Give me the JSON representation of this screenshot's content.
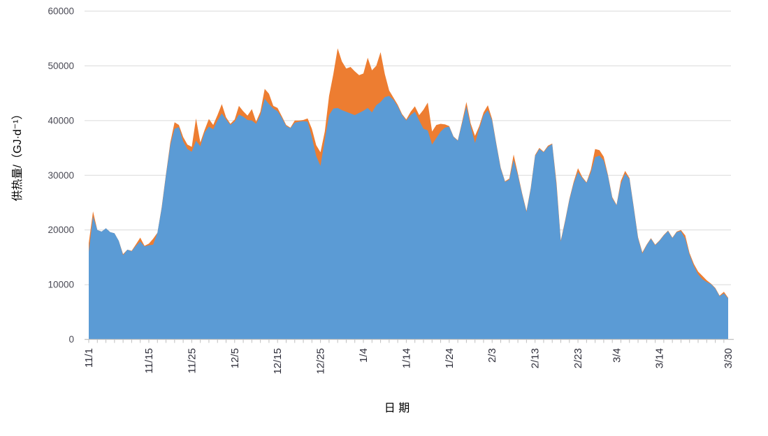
{
  "chart_data": {
    "type": "area",
    "title": "",
    "xlabel": "日  期",
    "ylabel": "供热量/（GJ·d⁻¹）",
    "ylim": [
      0,
      60000
    ],
    "grid": "horizontal",
    "legend": "none",
    "colors": {
      "blue_series": "#5B9BD5",
      "orange_series": "#ED7D31",
      "gridline": "#D9D9D9",
      "axis": "#BFBFBF"
    },
    "y_ticks": [
      {
        "value": 0,
        "label": "0"
      },
      {
        "value": 10000,
        "label": "10000"
      },
      {
        "value": 20000,
        "label": "20000"
      },
      {
        "value": 30000,
        "label": "30000"
      },
      {
        "value": 40000,
        "label": "40000"
      },
      {
        "value": 50000,
        "label": "50000"
      },
      {
        "value": 60000,
        "label": "60000"
      }
    ],
    "x_ticks": [
      {
        "label": "11/1",
        "day": 0
      },
      {
        "label": "11/15",
        "day": 14
      },
      {
        "label": "11/25",
        "day": 24
      },
      {
        "label": "12/5",
        "day": 34
      },
      {
        "label": "12/15",
        "day": 44
      },
      {
        "label": "12/25",
        "day": 54
      },
      {
        "label": "1/4",
        "day": 64
      },
      {
        "label": "1/14",
        "day": 74
      },
      {
        "label": "1/24",
        "day": 84
      },
      {
        "label": "2/3",
        "day": 94
      },
      {
        "label": "2/13",
        "day": 104
      },
      {
        "label": "2/23",
        "day": 114
      },
      {
        "label": "3/4",
        "day": 123
      },
      {
        "label": "3/14",
        "day": 133
      },
      {
        "label": "3/30",
        "day": 149
      }
    ],
    "minor_tick_every_days": 2,
    "x_range_days": 150,
    "series": [
      {
        "name": "series-orange",
        "color": "#ED7D31",
        "values": [
          17600,
          23400,
          20000,
          19700,
          20300,
          19600,
          19400,
          18000,
          15600,
          16400,
          16200,
          17400,
          18600,
          17100,
          17500,
          18400,
          19500,
          24200,
          30200,
          36000,
          39700,
          39200,
          37000,
          35600,
          35200,
          40400,
          36000,
          38300,
          40300,
          39200,
          41000,
          43000,
          40600,
          39400,
          40200,
          42700,
          41700,
          40900,
          42100,
          39800,
          41600,
          45800,
          44900,
          42700,
          42300,
          40800,
          39200,
          38700,
          40000,
          40000,
          40100,
          40400,
          38500,
          35500,
          34200,
          38000,
          44500,
          48500,
          53200,
          50800,
          49500,
          49800,
          49000,
          48300,
          48600,
          51500,
          49200,
          50000,
          52500,
          48500,
          45500,
          44200,
          42900,
          41200,
          40200,
          41600,
          42600,
          41000,
          42000,
          43300,
          38000,
          39200,
          39400,
          39300,
          39000,
          37100,
          36400,
          39800,
          43400,
          39500,
          37200,
          39000,
          41500,
          42800,
          40300,
          35700,
          31400,
          28900,
          29400,
          33800,
          30300,
          26700,
          23500,
          27700,
          33700,
          35000,
          34300,
          35400,
          35800,
          28600,
          18100,
          21700,
          25700,
          28800,
          31300,
          29700,
          28700,
          31000,
          34800,
          34600,
          33400,
          30000,
          26000,
          24600,
          29000,
          30800,
          29500,
          24200,
          18700,
          15900,
          17300,
          18500,
          17300,
          18100,
          19100,
          19900,
          18600,
          19700,
          20000,
          19000,
          15800,
          13800,
          12400,
          11600,
          10800,
          10200,
          9400,
          8000,
          8700,
          7600
        ]
      },
      {
        "name": "series-blue",
        "color": "#5B9BD5",
        "values": [
          16000,
          22500,
          20000,
          19700,
          20300,
          19600,
          19400,
          18000,
          15400,
          16400,
          16100,
          17100,
          17900,
          17000,
          17200,
          17300,
          19500,
          24000,
          30000,
          35500,
          38500,
          38800,
          36200,
          34800,
          34300,
          36300,
          35300,
          37800,
          38900,
          38400,
          40000,
          41300,
          40200,
          39200,
          39800,
          41100,
          40700,
          40100,
          40000,
          39400,
          41000,
          44000,
          43000,
          42200,
          41700,
          40500,
          39000,
          38600,
          39600,
          39800,
          39900,
          39800,
          37000,
          33500,
          31700,
          36500,
          41000,
          42200,
          42300,
          41900,
          41600,
          41300,
          41000,
          41400,
          41800,
          42300,
          41500,
          42800,
          43400,
          44300,
          44500,
          43800,
          42600,
          41000,
          40000,
          41000,
          41600,
          40000,
          38500,
          38200,
          35600,
          36800,
          38000,
          38700,
          38900,
          37000,
          36300,
          39500,
          42600,
          39000,
          35900,
          38500,
          41000,
          41900,
          40000,
          35500,
          31200,
          28800,
          29200,
          32800,
          30000,
          26500,
          23300,
          27500,
          33500,
          34800,
          34200,
          35200,
          35700,
          28000,
          17900,
          21500,
          25500,
          28500,
          30600,
          29500,
          28600,
          30500,
          33300,
          33600,
          32700,
          29800,
          25800,
          24500,
          28500,
          30300,
          29300,
          24000,
          18500,
          15700,
          17200,
          18400,
          17200,
          18000,
          19000,
          19800,
          18500,
          19600,
          19800,
          18400,
          15500,
          13400,
          11900,
          11000,
          10500,
          10100,
          9300,
          7900,
          8400,
          7500
        ]
      }
    ]
  }
}
